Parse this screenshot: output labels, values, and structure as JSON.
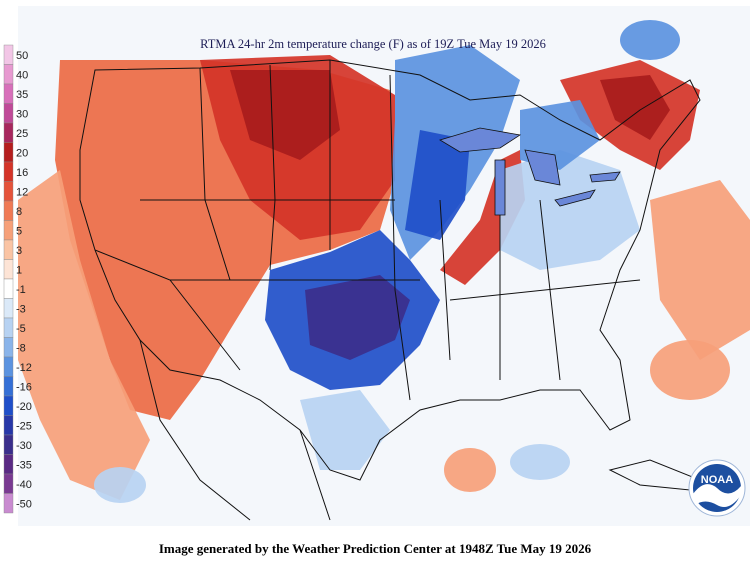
{
  "title": "RTMA 24-hr 2m temperature change (F) as of 19Z Tue May 19 2026",
  "footer": "Image generated by the Weather Prediction Center at 1948Z Tue May 19 2026",
  "logo_text": "NOAA",
  "legend": {
    "items": [
      {
        "label": "50",
        "color": "#f2c6e6"
      },
      {
        "label": "40",
        "color": "#e79ad0"
      },
      {
        "label": "35",
        "color": "#d870ba"
      },
      {
        "label": "30",
        "color": "#c04a98"
      },
      {
        "label": "25",
        "color": "#a8285e"
      },
      {
        "label": "20",
        "color": "#b51e1e"
      },
      {
        "label": "16",
        "color": "#d43428"
      },
      {
        "label": "12",
        "color": "#e5533a"
      },
      {
        "label": "8",
        "color": "#f07a55"
      },
      {
        "label": "5",
        "color": "#f6a079"
      },
      {
        "label": "3",
        "color": "#fac4a4"
      },
      {
        "label": "1",
        "color": "#fde4d6"
      },
      {
        "label": "-1",
        "color": "#ffffff"
      },
      {
        "label": "-3",
        "color": "#dbe9f8"
      },
      {
        "label": "-5",
        "color": "#b7d2f2"
      },
      {
        "label": "-8",
        "color": "#8ab4ea"
      },
      {
        "label": "-12",
        "color": "#5b93e0"
      },
      {
        "label": "-16",
        "color": "#3570d6"
      },
      {
        "label": "-20",
        "color": "#1f4fc9"
      },
      {
        "label": "-25",
        "color": "#2838a8"
      },
      {
        "label": "-30",
        "color": "#3b2f8c"
      },
      {
        "label": "-35",
        "color": "#5a2a84"
      },
      {
        "label": "-40",
        "color": "#7a3a92"
      },
      {
        "label": "-50",
        "color": "#c98bd0"
      }
    ]
  },
  "colors": {
    "warm_light": "#f6a079",
    "warm_mid": "#ec6a44",
    "warm_strong": "#d43428",
    "warm_deep": "#a81c1c",
    "cool_light": "#b7d2f2",
    "cool_mid": "#5b93e0",
    "cool_strong": "#1f4fc9",
    "cool_deep": "#3b2f8c",
    "neutral": "#f3f6fb"
  }
}
